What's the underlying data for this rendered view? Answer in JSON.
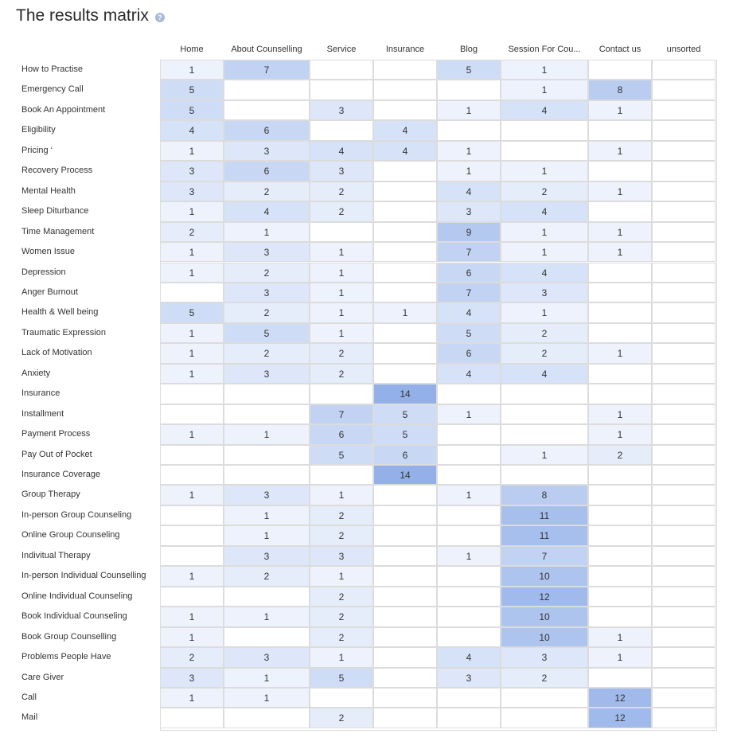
{
  "title": "The results matrix",
  "help_icon": "help-icon",
  "colors": {
    "max_cell": "#93b1e8",
    "min_cell": "#f6f9fe",
    "help_icon_bg": "#a9b9d6"
  },
  "chart_data": {
    "type": "heatmap",
    "title": "The results matrix",
    "columns": [
      "Home",
      "About Counselling",
      "Service",
      "Insurance",
      "Blog",
      "Session For Cou...",
      "Contact us",
      "unsorted"
    ],
    "rows": [
      "How to Practise",
      "Emergency Call",
      "Book An Appointment",
      "Eligibility",
      "Pricing ‘",
      "Recovery Process",
      "Mental Health",
      "Sleep Diturbance",
      "Time Management",
      "Women Issue",
      "Depression",
      "Anger Burnout",
      "Health & Well being",
      "Traumatic Expression",
      "Lack of Motivation",
      "Anxiety",
      "Insurance",
      "Installment",
      "Payment Process",
      "Pay Out of Pocket",
      "Insurance Coverage",
      "Group Therapy",
      "In-person Group Counseling",
      "Online Group Counseling",
      "Indivitual Therapy",
      "In-person Individual Counselling",
      "Online Individual Counseling",
      "Book Individual Counseling",
      "Book Group Counselling",
      "Problems People Have",
      "Care Giver",
      "Call",
      "Mail"
    ],
    "values": [
      [
        1,
        7,
        null,
        null,
        5,
        1,
        null,
        null
      ],
      [
        5,
        null,
        null,
        null,
        null,
        1,
        8,
        null
      ],
      [
        5,
        null,
        3,
        null,
        1,
        4,
        1,
        null
      ],
      [
        4,
        6,
        null,
        4,
        null,
        null,
        null,
        null
      ],
      [
        1,
        3,
        4,
        4,
        1,
        null,
        1,
        null
      ],
      [
        3,
        6,
        3,
        null,
        1,
        1,
        null,
        null
      ],
      [
        3,
        2,
        2,
        null,
        4,
        2,
        1,
        null
      ],
      [
        1,
        4,
        2,
        null,
        3,
        4,
        null,
        null
      ],
      [
        2,
        1,
        null,
        null,
        9,
        1,
        1,
        null
      ],
      [
        1,
        3,
        1,
        null,
        7,
        1,
        1,
        null
      ],
      [
        1,
        2,
        1,
        null,
        6,
        4,
        null,
        null
      ],
      [
        null,
        3,
        1,
        null,
        7,
        3,
        null,
        null
      ],
      [
        5,
        2,
        1,
        1,
        4,
        1,
        null,
        null
      ],
      [
        1,
        5,
        1,
        null,
        5,
        2,
        null,
        null
      ],
      [
        1,
        2,
        2,
        null,
        6,
        2,
        1,
        null
      ],
      [
        1,
        3,
        2,
        null,
        4,
        4,
        null,
        null
      ],
      [
        null,
        null,
        null,
        14,
        null,
        null,
        null,
        null
      ],
      [
        null,
        null,
        7,
        5,
        1,
        null,
        1,
        null
      ],
      [
        1,
        1,
        6,
        5,
        null,
        null,
        1,
        null
      ],
      [
        null,
        null,
        5,
        6,
        null,
        1,
        2,
        null
      ],
      [
        null,
        null,
        null,
        14,
        null,
        null,
        null,
        null
      ],
      [
        1,
        3,
        1,
        null,
        1,
        8,
        null,
        null
      ],
      [
        null,
        1,
        2,
        null,
        null,
        11,
        null,
        null
      ],
      [
        null,
        1,
        2,
        null,
        null,
        11,
        null,
        null
      ],
      [
        null,
        3,
        3,
        null,
        1,
        7,
        null,
        null
      ],
      [
        1,
        2,
        1,
        null,
        null,
        10,
        null,
        null
      ],
      [
        null,
        null,
        2,
        null,
        null,
        12,
        null,
        null
      ],
      [
        1,
        1,
        2,
        null,
        null,
        10,
        null,
        null
      ],
      [
        1,
        null,
        2,
        null,
        null,
        10,
        1,
        null
      ],
      [
        2,
        3,
        1,
        null,
        4,
        3,
        1,
        null
      ],
      [
        3,
        1,
        5,
        null,
        3,
        2,
        null,
        null
      ],
      [
        1,
        1,
        null,
        null,
        null,
        null,
        12,
        null
      ],
      [
        null,
        null,
        2,
        null,
        null,
        null,
        12,
        null
      ]
    ]
  }
}
